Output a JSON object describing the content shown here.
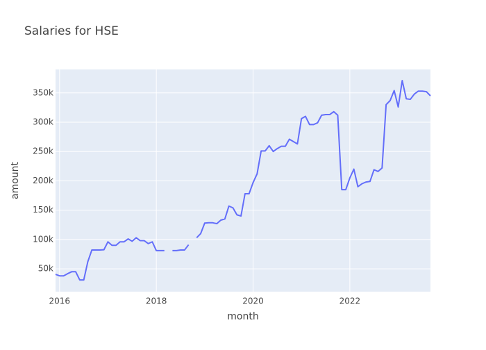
{
  "chart_data": {
    "type": "line",
    "title": "Salaries for HSE",
    "x_label": "month",
    "y_label": "amount",
    "x": [
      "2015-12",
      "2016-01",
      "2016-02",
      "2016-03",
      "2016-04",
      "2016-05",
      "2016-06",
      "2016-07",
      "2016-08",
      "2016-09",
      "2016-10",
      "2016-11",
      "2016-12",
      "2017-01",
      "2017-02",
      "2017-03",
      "2017-04",
      "2017-05",
      "2017-06",
      "2017-07",
      "2017-08",
      "2017-09",
      "2017-10",
      "2017-11",
      "2017-12",
      "2018-01",
      "2018-02",
      "2018-03",
      "2018-04",
      "2018-05",
      "2018-06",
      "2018-07",
      "2018-08",
      "2018-09",
      "2018-10",
      "2018-11",
      "2018-12",
      "2019-01",
      "2019-02",
      "2019-03",
      "2019-04",
      "2019-05",
      "2019-06",
      "2019-07",
      "2019-08",
      "2019-09",
      "2019-10",
      "2019-11",
      "2019-12",
      "2020-01",
      "2020-02",
      "2020-03",
      "2020-04",
      "2020-05",
      "2020-06",
      "2020-07",
      "2020-08",
      "2020-09",
      "2020-10",
      "2020-11",
      "2020-12",
      "2021-01",
      "2021-02",
      "2021-03",
      "2021-04",
      "2021-05",
      "2021-06",
      "2021-07",
      "2021-08",
      "2021-09",
      "2021-10",
      "2021-11",
      "2021-12",
      "2022-01",
      "2022-02",
      "2022-03",
      "2022-04",
      "2022-05",
      "2022-06",
      "2022-07",
      "2022-08",
      "2022-09",
      "2022-10",
      "2022-11",
      "2022-12",
      "2023-01",
      "2023-02",
      "2023-03",
      "2023-04",
      "2023-05",
      "2023-06",
      "2023-07",
      "2023-08",
      "2023-09"
    ],
    "series": [
      {
        "name": "amount",
        "color": "#636efa",
        "values": [
          40500,
          38000,
          38000,
          41700,
          45000,
          45000,
          31000,
          31000,
          62000,
          82000,
          82000,
          82000,
          82500,
          96000,
          90000,
          90000,
          96000,
          96000,
          101000,
          97000,
          103000,
          98000,
          98000,
          93000,
          96000,
          81000,
          81000,
          81000,
          null,
          81000,
          81000,
          82000,
          82000,
          91000,
          null,
          103000,
          110000,
          128000,
          128500,
          128500,
          127000,
          133000,
          135000,
          157000,
          154000,
          142000,
          140000,
          178000,
          178000,
          197000,
          212000,
          251000,
          251000,
          260000,
          250000,
          255000,
          259000,
          259000,
          271000,
          267000,
          263000,
          306000,
          310000,
          296000,
          296000,
          299000,
          312000,
          313000,
          313000,
          318000,
          312000,
          185000,
          185000,
          205000,
          220000,
          190000,
          195000,
          198000,
          199000,
          219000,
          216000,
          222000,
          330000,
          337000,
          354000,
          326000,
          371000,
          340000,
          339000,
          348000,
          353000,
          353000,
          352000,
          345000
        ]
      }
    ],
    "xlim": [
      "2015-12",
      "2023-09"
    ],
    "xticks": [
      "2016",
      "2018",
      "2020",
      "2022"
    ],
    "ylim": [
      11000,
      390000
    ],
    "yticks": [
      {
        "value": 50000,
        "label": "50k"
      },
      {
        "value": 100000,
        "label": "100k"
      },
      {
        "value": 150000,
        "label": "150k"
      },
      {
        "value": 200000,
        "label": "200k"
      },
      {
        "value": 250000,
        "label": "250k"
      },
      {
        "value": 300000,
        "label": "300k"
      },
      {
        "value": 350000,
        "label": "350k"
      }
    ],
    "grid": true
  }
}
